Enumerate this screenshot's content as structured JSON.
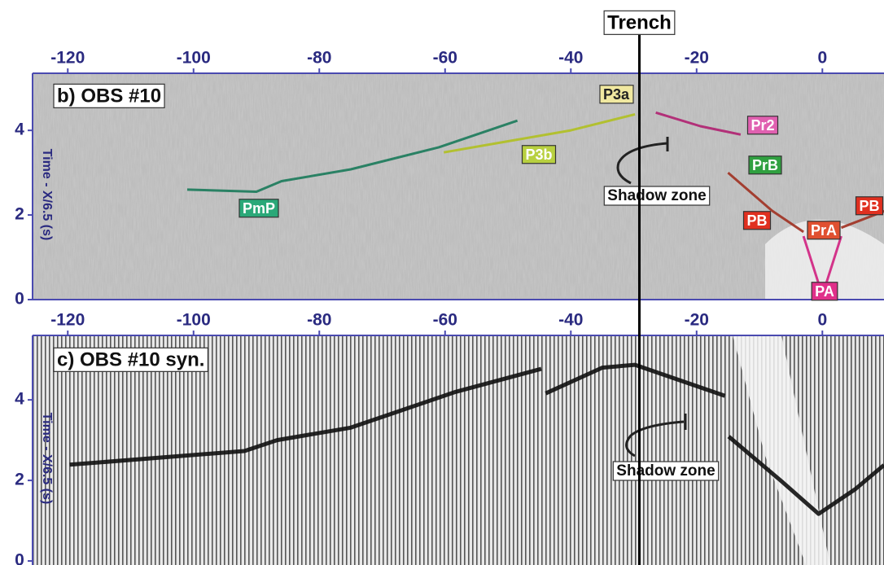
{
  "trench": {
    "label": "Trench",
    "x": -29.1
  },
  "chart_data": [
    {
      "type": "line",
      "title": "b) OBS #10",
      "ylabel": "Time - X/6.5 (s)",
      "xlim": [
        -125.6,
        9.8
      ],
      "xticks": [
        -120,
        -100,
        -80,
        -60,
        -40,
        -20,
        0
      ],
      "ylim": [
        0,
        5.35
      ],
      "yticks": [
        0,
        2,
        4
      ],
      "series": [
        {
          "color": "#1a7a5a",
          "x": [
            -101,
            -90,
            -86,
            -75,
            -61,
            -48.5
          ],
          "values": [
            2.6,
            2.55,
            2.8,
            3.08,
            3.6,
            4.23
          ]
        },
        {
          "color": "#b0c020",
          "x": [
            -60.2,
            -40,
            -29.8
          ],
          "values": [
            3.48,
            4.0,
            4.38
          ]
        },
        {
          "color": "#b02070",
          "x": [
            -26.5,
            -19.4,
            -13
          ],
          "values": [
            4.42,
            4.1,
            3.9
          ]
        },
        {
          "color": "#a03020",
          "x": [
            -15,
            -8,
            -3,
            null,
            3,
            10
          ],
          "values": [
            3.0,
            2.1,
            1.6,
            null,
            1.7,
            2.1
          ]
        },
        {
          "color": "#d02080",
          "x": [
            -3,
            0,
            3
          ],
          "values": [
            1.5,
            0.1,
            1.5
          ]
        }
      ],
      "annotations": [
        {
          "text": "P3a",
          "color": "#f0e8a0",
          "text_color": "#222222"
        },
        {
          "text": "P3b",
          "color": "#b8d040",
          "text_color": "#ffffff"
        },
        {
          "text": "PmP",
          "color": "#2aa878",
          "text_color": "#ffffff"
        },
        {
          "text": "Pr2",
          "color": "#e060b0",
          "text_color": "#ffffff"
        },
        {
          "text": "PrB",
          "color": "#30a040",
          "text_color": "#ffffff"
        },
        {
          "text": "Shadow zone",
          "color": "#ffffff",
          "text_color": "#111111"
        },
        {
          "text": "PB",
          "color": "#e03020",
          "text_color": "#ffffff"
        },
        {
          "text": "PrA",
          "color": "#e05030",
          "text_color": "#ffffff"
        },
        {
          "text": "PB",
          "color": "#e03020",
          "text_color": "#ffffff"
        },
        {
          "text": "PA",
          "color": "#e0308a",
          "text_color": "#ffffff"
        }
      ]
    },
    {
      "type": "line",
      "title": "c) OBS #10 syn.",
      "ylabel": "Time - X/6.5 (s)",
      "xlim": [
        -125.6,
        9.8
      ],
      "xticks": [
        -120,
        -100,
        -80,
        -60,
        -40,
        -20,
        0
      ],
      "ylim": [
        -0.1,
        5.6
      ],
      "yticks": [
        0,
        2,
        4
      ],
      "series": [
        {
          "color": "#111111",
          "x": [
            -119.7,
            -91.9,
            -86.7,
            -75,
            -58.3,
            -44.7,
            null,
            -44,
            -35,
            -29.8,
            -15.5,
            null,
            -14.9,
            -6.5,
            -0.6,
            5.2,
            9.8
          ],
          "values": [
            2.39,
            2.73,
            3.0,
            3.31,
            4.2,
            4.77,
            null,
            4.16,
            4.8,
            4.87,
            4.1,
            null,
            3.09,
            1.98,
            1.17,
            1.78,
            2.38
          ]
        }
      ],
      "annotations": [
        {
          "text": "Shadow zone",
          "color": "#ffffff",
          "text_color": "#111111"
        }
      ]
    }
  ]
}
